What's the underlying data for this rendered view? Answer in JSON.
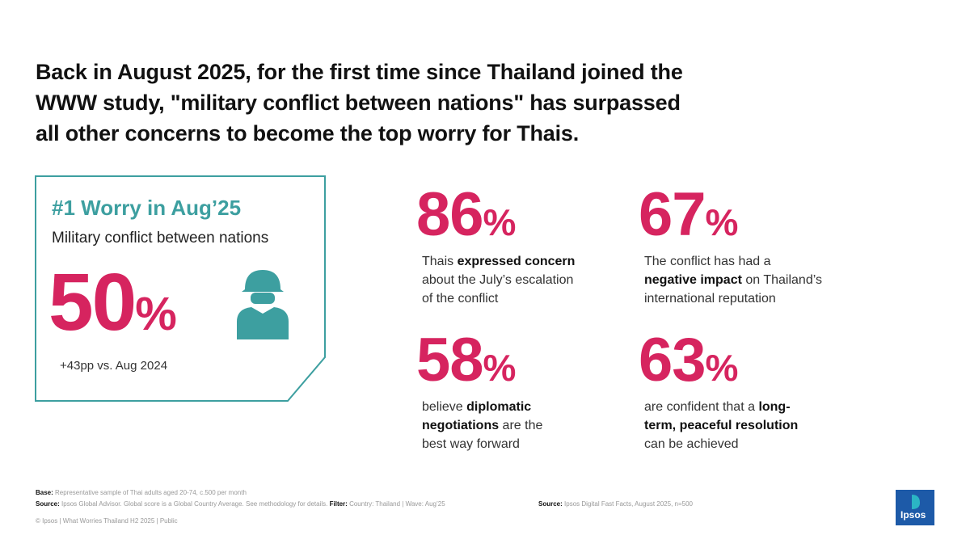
{
  "title": [
    "Back in August 2025, for the first time since Thailand joined the",
    "WWW study, \"military conflict between nations\" has surpassed",
    "all other concerns to become the top worry for Thais."
  ],
  "highlight": {
    "heading": "#1 Worry in Aug’25",
    "subheading": "Military conflict between nations",
    "number": "50",
    "unit": "%",
    "note": "+43pp vs. Aug 2024"
  },
  "stats": [
    {
      "number": "86",
      "unit": "%",
      "lines": [
        [
          {
            "text": "Thais "
          },
          {
            "text": "expressed concern",
            "bold": true
          }
        ],
        [
          {
            "text": "about the July’s escalation"
          }
        ],
        [
          {
            "text": "of the conflict"
          }
        ]
      ]
    },
    {
      "number": "67",
      "unit": "%",
      "lines": [
        [
          {
            "text": "The conflict has had a"
          }
        ],
        [
          {
            "text": "negative impact",
            "bold": true
          },
          {
            "text": " on Thailand’s"
          }
        ],
        [
          {
            "text": "international reputation"
          }
        ]
      ]
    },
    {
      "number": "58",
      "unit": "%",
      "lines": [
        [
          {
            "text": "believe "
          },
          {
            "text": "diplomatic",
            "bold": true
          }
        ],
        [
          {
            "text": "negotiations",
            "bold": true
          },
          {
            "text": " are the"
          }
        ],
        [
          {
            "text": "best way forward"
          }
        ]
      ]
    },
    {
      "number": "63",
      "unit": "%",
      "lines": [
        [
          {
            "text": "are confident that a "
          },
          {
            "text": "long-",
            "bold": true
          }
        ],
        [
          {
            "text": "term, peaceful resolution",
            "bold": true
          }
        ],
        [
          {
            "text": "can be achieved"
          }
        ]
      ]
    }
  ],
  "footer": {
    "lines": [
      [
        {
          "text": "Base: ",
          "bold": true
        },
        {
          "text": "Representative sample of Thai adults aged 20-74, c.500 per month"
        }
      ],
      [
        {
          "text": "Source: ",
          "bold": true
        },
        {
          "text": "Ipsos Global Advisor. Global score is a Global Country Average. See methodology for details. "
        },
        {
          "text": "Filter: ",
          "bold": true
        },
        {
          "text": "Country: Thailand | Wave: Aug’25"
        }
      ],
      [
        {
          "text": "© Ipsos | What Worries Thailand H2 2025 | Public"
        }
      ]
    ],
    "source_right": [
      {
        "text": "Source: ",
        "bold": true
      },
      {
        "text": "Ipsos Digital Fast Facts, August 2025, n=500"
      }
    ]
  },
  "logo": "Ipsos"
}
